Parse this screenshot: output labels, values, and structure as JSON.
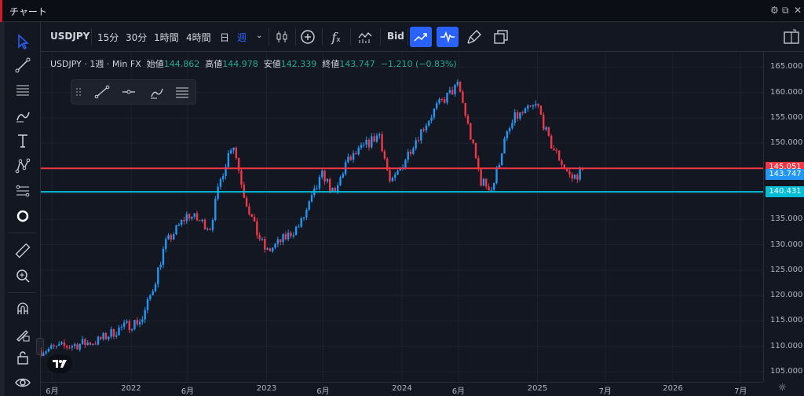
{
  "window": {
    "title": "チャート",
    "settings_icon": "gear-icon",
    "popout_icon": "popout-icon",
    "close_icon": "close-icon"
  },
  "toolbar": {
    "symbol": "USDJPY",
    "intervals": [
      "15分",
      "30分",
      "1時間",
      "4時間",
      "日",
      "週"
    ],
    "active_interval": "週",
    "bid_label": "Bid"
  },
  "legend": {
    "symbol": "USDJPY",
    "interval": "1週",
    "source": "Min FX",
    "open_label": "始値",
    "open": "144.862",
    "high_label": "高値",
    "high": "144.978",
    "low_label": "安値",
    "low": "142.339",
    "close_label": "終値",
    "close": "143.747",
    "change": "−1.210 (−0.83%)"
  },
  "price_axis": {
    "ticks": [
      "165.000",
      "160.000",
      "155.000",
      "150.000",
      "145.000",
      "140.000",
      "135.000",
      "130.000",
      "125.000",
      "120.000",
      "115.000",
      "110.000",
      "105.000"
    ],
    "labels": [
      {
        "value": "145.051",
        "color": "#f23645"
      },
      {
        "value": "143.747",
        "color": "#2196f3"
      },
      {
        "value": "140.431",
        "color": "#00bcd4"
      }
    ]
  },
  "time_axis": {
    "ticks": [
      "6月",
      "2022",
      "6月",
      "2023",
      "6月",
      "2024",
      "6月",
      "2025",
      "7月",
      "2026",
      "7月"
    ]
  },
  "colors": {
    "up": "#089981",
    "down": "#f23645",
    "background": "#131722",
    "accent": "#2962ff"
  },
  "chart_data": {
    "type": "candlestick",
    "symbol": "USDJPY",
    "interval": "1週",
    "ylim": [
      103,
      168
    ],
    "x_range": [
      "2021-05",
      "2026-09"
    ],
    "horizontal_lines": [
      {
        "price": 145.051,
        "color": "#f23645"
      },
      {
        "price": 140.431,
        "color": "#00bcd4"
      }
    ],
    "price_path": [
      [
        "2021-05",
        109.2
      ],
      [
        "2021-10",
        111.0
      ],
      [
        "2021-12",
        113.5
      ],
      [
        "2022-02",
        115.3
      ],
      [
        "2022-03",
        122.0
      ],
      [
        "2022-04",
        130.0
      ],
      [
        "2022-06",
        136.0
      ],
      [
        "2022-08",
        133.5
      ],
      [
        "2022-09",
        143.5
      ],
      [
        "2022-10",
        150.5
      ],
      [
        "2022-11",
        140.0
      ],
      [
        "2022-12",
        133.0
      ],
      [
        "2023-01",
        128.5
      ],
      [
        "2023-03",
        132.0
      ],
      [
        "2023-04",
        134.0
      ],
      [
        "2023-06",
        144.0
      ],
      [
        "2023-07",
        139.5
      ],
      [
        "2023-08",
        146.0
      ],
      [
        "2023-10",
        150.0
      ],
      [
        "2023-11",
        151.8
      ],
      [
        "2023-12",
        141.5
      ],
      [
        "2024-02",
        150.0
      ],
      [
        "2024-04",
        157.0
      ],
      [
        "2024-06",
        161.5
      ],
      [
        "2024-07",
        152.0
      ],
      [
        "2024-08",
        142.5
      ],
      [
        "2024-09",
        141.0
      ],
      [
        "2024-10",
        150.0
      ],
      [
        "2024-11",
        155.0
      ],
      [
        "2025-01",
        157.5
      ],
      [
        "2025-02",
        150.5
      ],
      [
        "2025-04",
        143.0
      ],
      [
        "2025-05",
        144.5
      ]
    ]
  }
}
